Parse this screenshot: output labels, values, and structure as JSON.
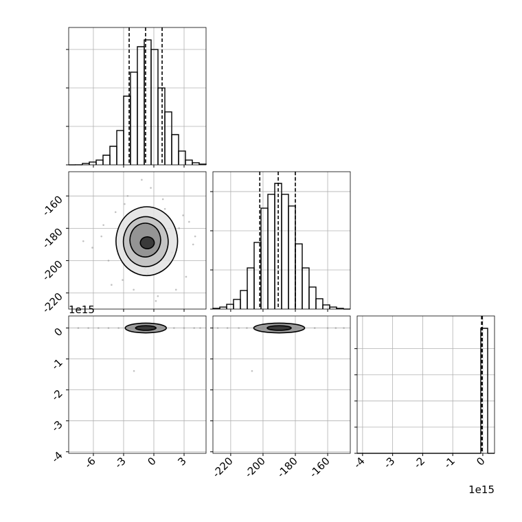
{
  "chart_data": [
    {
      "type": "histogram",
      "color": "#000000",
      "grid": true,
      "bins": [
        -8.45,
        -7.7685,
        -7.087,
        -6.4055,
        -5.724,
        -5.0425,
        -4.361,
        -3.6795,
        -2.998,
        -2.3165,
        -1.635,
        -0.9535,
        -0.272,
        0.4095,
        1.091,
        1.7725,
        2.454,
        3.1355,
        3.817,
        4.4985,
        5.18
      ],
      "counts": [
        0,
        1,
        18,
        36,
        62,
        125,
        241,
        446,
        893,
        1205,
        1536,
        1625,
        1500,
        1000,
        688,
        393,
        179,
        62,
        27,
        9
      ],
      "quantiles": [
        -2.45,
        -0.82,
        0.82
      ],
      "xlim": [
        -8.45,
        5.18
      ],
      "xticks": [
        -6,
        -3,
        0,
        3
      ],
      "ylim": [
        0,
        1786
      ],
      "yticks": [
        0,
        500,
        1000,
        1500
      ]
    },
    {
      "type": "contour",
      "grid": true,
      "xlim": [
        -8.45,
        5.18
      ],
      "xticks": [
        -6,
        -3,
        0,
        3
      ],
      "ylim": [
        -230,
        -145
      ],
      "yticks": [
        -160,
        -180,
        -200,
        -220
      ],
      "contours": [
        {
          "x": [
            2.6,
            1.63,
            -0.7,
            -3.03,
            -4.0,
            -3.03,
            -0.7,
            1.63
          ],
          "y": [
            -188,
            -171.7,
            -165,
            -171.7,
            -188,
            -204.3,
            -211,
            -204.3
          ]
        },
        {
          "x": [
            1.6,
            0.9,
            -0.8,
            -2.5,
            -3.2,
            -2.5,
            -0.8,
            0.9
          ],
          "y": [
            -188.3,
            -176.5,
            -171.6,
            -176.5,
            -188.3,
            -200.1,
            -205,
            -200.1
          ]
        },
        {
          "x": [
            0.8,
            0.32,
            -0.85,
            -2.02,
            -2.5,
            -2.02,
            -0.85,
            0.32
          ],
          "y": [
            -187.3,
            -179.3,
            -176,
            -179.3,
            -187.3,
            -195.3,
            -198.6,
            -195.3
          ]
        },
        {
          "x": [
            0.1,
            -0.12,
            -0.65,
            -1.18,
            -1.4,
            -1.18,
            -0.65,
            -0.12
          ],
          "y": [
            -189,
            -186.2,
            -185,
            -186.2,
            -189,
            -191.8,
            -193,
            -191.8
          ]
        }
      ],
      "points": {
        "x": [
          -5.2,
          -4.5,
          -3.8,
          -3.1,
          -2.6,
          -2.0,
          -1.5,
          -0.9,
          -0.3,
          0.4,
          1.1,
          1.8,
          2.5,
          3.2,
          3.9,
          -6.1,
          -5.0,
          -4.2,
          -2.9,
          -1.2,
          0.2,
          1.5,
          2.9,
          4.1,
          -3.5,
          -0.6,
          0.9,
          2.2,
          -7.0,
          3.5
        ],
        "y": [
          -185,
          -200,
          -170,
          -212,
          -160,
          -218,
          -175,
          -205,
          -155,
          -222,
          -168,
          -195,
          -180,
          -210,
          -190,
          -192,
          -178,
          -215,
          -165,
          -150,
          -225,
          -200,
          -172,
          -185,
          -196,
          -208,
          -162,
          -218,
          -188,
          -176
        ]
      }
    },
    {
      "type": "histogram",
      "color": "#000000",
      "grid": true,
      "bins": [
        -231,
        -226.75,
        -222.5,
        -218.25,
        -214,
        -209.75,
        -205.5,
        -201.25,
        -197,
        -192.75,
        -188.5,
        -184.25,
        -180,
        -175.75,
        -171.5,
        -167.25,
        -163,
        -158.75,
        -154.5,
        -150.25,
        -146
      ],
      "counts": [
        9,
        26,
        61,
        123,
        237,
        526,
        851,
        1289,
        1465,
        1605,
        1465,
        1316,
        833,
        526,
        281,
        132,
        53,
        26,
        9,
        0
      ],
      "quantiles": [
        -202,
        -190.6,
        -180
      ],
      "xlim": [
        -231,
        -146
      ],
      "xticks": [
        -220,
        -200,
        -180,
        -160
      ],
      "ylim": [
        0,
        1754
      ],
      "yticks": [
        0,
        500,
        1000,
        1500
      ]
    },
    {
      "type": "contour",
      "grid": true,
      "y_offset_label": "1e15",
      "xlim": [
        -8.45,
        5.18
      ],
      "xticks": [
        -6,
        -3,
        0,
        3
      ],
      "ylim": [
        -4.05,
        0.39
      ],
      "yticks": [
        0,
        -1,
        -2,
        -3,
        -4
      ],
      "contours": [
        {
          "x": [
            1.4,
            0.76,
            -0.8,
            -2.36,
            -3.0,
            -2.36,
            -0.8,
            0.76
          ],
          "y": [
            0,
            0.12,
            0.17,
            0.12,
            0,
            -0.12,
            -0.17,
            -0.12
          ]
        },
        {
          "x": [
            0.3,
            -0.02,
            -0.8,
            -1.58,
            -1.9,
            -1.58,
            -0.8,
            -0.02
          ],
          "y": [
            0,
            0.057,
            0.08,
            0.057,
            0,
            -0.057,
            -0.08,
            -0.057
          ]
        }
      ],
      "points": {
        "x": [
          -7.5,
          -6.5,
          -5.5,
          -4.5,
          -3.5,
          2.0,
          3.0,
          4.0,
          4.6,
          -1.97
        ],
        "y": [
          0,
          0,
          0,
          0,
          0,
          0,
          0,
          0,
          0,
          -1.39
        ]
      }
    },
    {
      "type": "contour",
      "grid": true,
      "xlim": [
        -231,
        -146
      ],
      "xticks": [
        -220,
        -200,
        -180,
        -160
      ],
      "ylim": [
        -4.05,
        0.39
      ],
      "yticks": [
        0,
        -1,
        -2,
        -3,
        -4
      ],
      "contours": [
        {
          "x": [
            -173,
            -178,
            -190,
            -202,
            -207,
            -202,
            -190,
            -178
          ],
          "y": [
            0,
            0.12,
            0.17,
            0.12,
            0,
            -0.12,
            -0.17,
            -0.12
          ]
        },
        {
          "x": [
            -182,
            -184.3,
            -190,
            -195.7,
            -198,
            -195.7,
            -190,
            -184.3
          ],
          "y": [
            0,
            0.057,
            0.08,
            0.057,
            0,
            -0.057,
            -0.08,
            -0.057
          ]
        }
      ],
      "points": {
        "x": [
          -228,
          -222,
          -215,
          -210,
          -168,
          -160,
          -155,
          -150,
          -206.8
        ],
        "y": [
          0,
          0,
          0,
          0,
          0,
          0,
          0,
          0,
          -1.39
        ]
      }
    },
    {
      "type": "histogram",
      "color": "#000000",
      "grid": true,
      "x_offset_label": "1e15",
      "bins": [
        -4.18,
        -3.9515,
        -3.723,
        -3.4945,
        -3.266,
        -3.0375,
        -2.809,
        -2.5805,
        -2.352,
        -2.1235,
        -1.895,
        -1.6665,
        -1.438,
        -1.2095,
        -0.981,
        -0.7525,
        -0.524,
        -0.2955,
        -0.067,
        0.1615,
        0.39
      ],
      "counts": [
        0,
        0,
        0,
        0,
        0,
        0,
        0,
        0,
        0,
        0,
        0,
        0,
        0,
        0,
        0,
        0,
        0,
        0,
        9555,
        0
      ],
      "quantiles": [
        -0.04,
        -0.03,
        -0.02
      ],
      "xlim": [
        -4.18,
        0.39
      ],
      "xticks": [
        -4,
        -3,
        -2,
        -1,
        0
      ],
      "ylim": [
        0,
        10500
      ],
      "yticks": [
        0,
        2000,
        4000,
        6000,
        8000
      ]
    }
  ]
}
